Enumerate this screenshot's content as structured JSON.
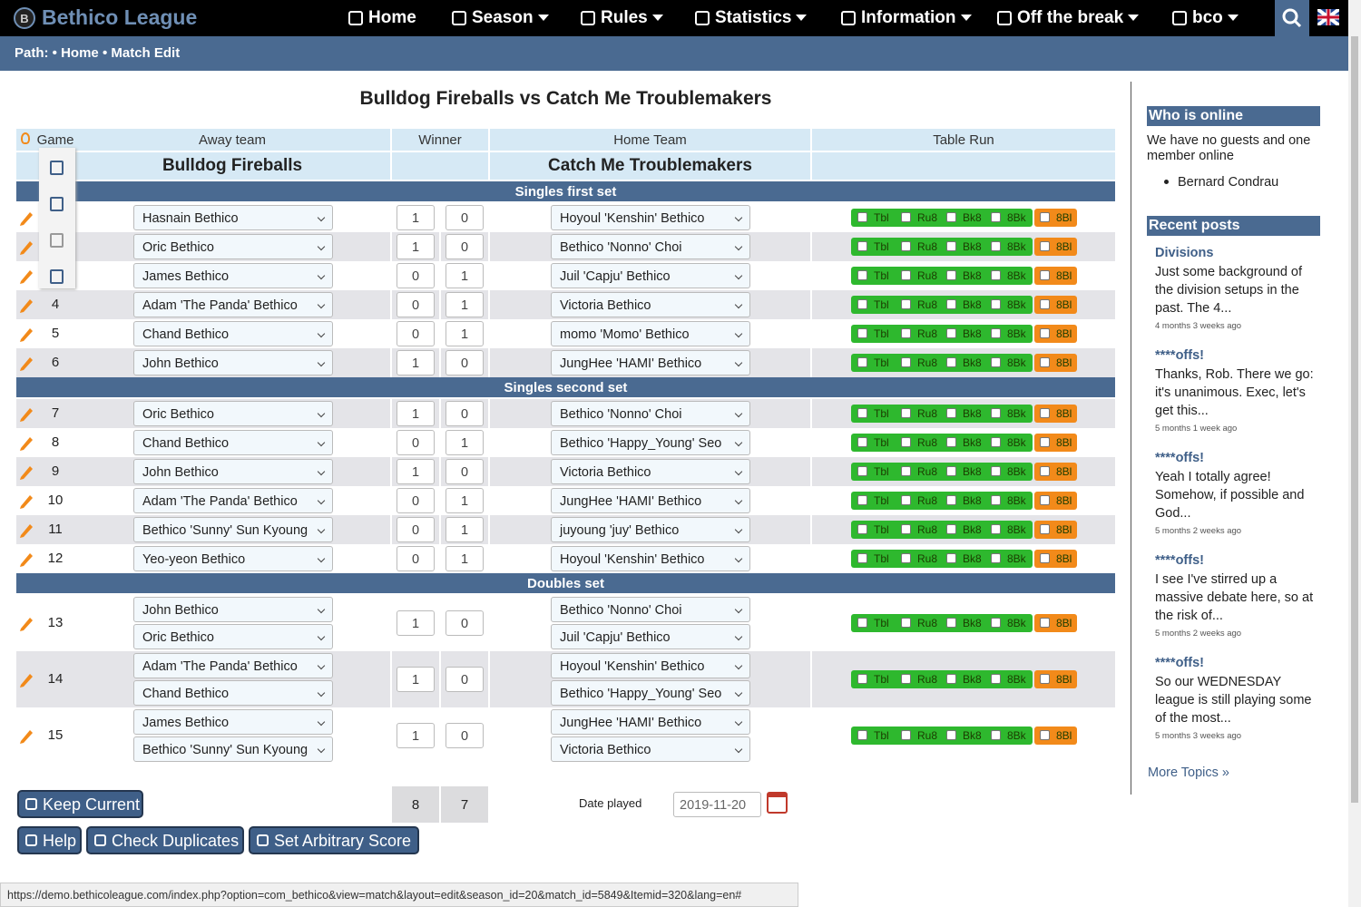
{
  "nav": {
    "brand": "Bethico League",
    "items": [
      "Home",
      "Season",
      "Rules",
      "Statistics",
      "Information",
      "Off the break",
      "bco"
    ]
  },
  "breadcrumb": {
    "label": "Path:",
    "items": [
      "Home",
      "Match Edit"
    ]
  },
  "title": "Bulldog Fireballs vs Catch Me Troublemakers",
  "table": {
    "headers": [
      "Game",
      "Away team",
      "Winner",
      "Home Team",
      "Table Run"
    ],
    "away_team": "Bulldog Fireballs",
    "home_team": "Catch Me Troublemakers",
    "table_run_labels": [
      "Tbl",
      "Ru8",
      "Bk8",
      "8Bk",
      "8Bl"
    ],
    "sections": [
      {
        "title": "Singles first set",
        "games": [
          {
            "game": null,
            "away": [
              "Hasnain Bethico"
            ],
            "score": [
              1,
              0
            ],
            "home": [
              "Hoyoul 'Kenshin' Bethico"
            ]
          },
          {
            "game": null,
            "away": [
              "Oric Bethico"
            ],
            "score": [
              1,
              0
            ],
            "home": [
              "Bethico 'Nonno' Choi"
            ]
          },
          {
            "game": null,
            "away": [
              "James Bethico"
            ],
            "score": [
              0,
              1
            ],
            "home": [
              "Juil 'Capju' Bethico"
            ]
          },
          {
            "game": 4,
            "away": [
              "Adam 'The Panda' Bethico"
            ],
            "score": [
              0,
              1
            ],
            "home": [
              "Victoria Bethico"
            ]
          },
          {
            "game": 5,
            "away": [
              "Chand Bethico"
            ],
            "score": [
              0,
              1
            ],
            "home": [
              "momo 'Momo' Bethico"
            ]
          },
          {
            "game": 6,
            "away": [
              "John Bethico"
            ],
            "score": [
              1,
              0
            ],
            "home": [
              "JungHee 'HAMI' Bethico"
            ]
          }
        ]
      },
      {
        "title": "Singles second set",
        "games": [
          {
            "game": 7,
            "away": [
              "Oric Bethico"
            ],
            "score": [
              1,
              0
            ],
            "home": [
              "Bethico 'Nonno' Choi"
            ]
          },
          {
            "game": 8,
            "away": [
              "Chand Bethico"
            ],
            "score": [
              0,
              1
            ],
            "home": [
              "Bethico 'Happy_Young' Seo"
            ]
          },
          {
            "game": 9,
            "away": [
              "John Bethico"
            ],
            "score": [
              1,
              0
            ],
            "home": [
              "Victoria Bethico"
            ]
          },
          {
            "game": 10,
            "away": [
              "Adam 'The Panda' Bethico"
            ],
            "score": [
              0,
              1
            ],
            "home": [
              "JungHee 'HAMI' Bethico"
            ]
          },
          {
            "game": 11,
            "away": [
              "Bethico 'Sunny' Sun Kyoung"
            ],
            "score": [
              0,
              1
            ],
            "home": [
              "juyoung 'juy' Bethico"
            ]
          },
          {
            "game": 12,
            "away": [
              "Yeo-yeon Bethico"
            ],
            "score": [
              0,
              1
            ],
            "home": [
              "Hoyoul 'Kenshin' Bethico"
            ]
          }
        ]
      },
      {
        "title": "Doubles set",
        "games": [
          {
            "game": 13,
            "away": [
              "John Bethico",
              "Oric Bethico"
            ],
            "score": [
              1,
              0
            ],
            "home": [
              "Bethico 'Nonno' Choi",
              "Juil 'Capju' Bethico"
            ]
          },
          {
            "game": 14,
            "away": [
              "Adam 'The Panda' Bethico",
              "Chand Bethico"
            ],
            "score": [
              1,
              0
            ],
            "home": [
              "Hoyoul 'Kenshin' Bethico",
              "Bethico 'Happy_Young' Seo"
            ]
          },
          {
            "game": 15,
            "away": [
              "James Bethico",
              "Bethico 'Sunny' Sun Kyoung"
            ],
            "score": [
              1,
              0
            ],
            "home": [
              "JungHee 'HAMI' Bethico",
              "Victoria Bethico"
            ]
          }
        ]
      }
    ],
    "totals": [
      8,
      7
    ]
  },
  "date": {
    "label": "Date played",
    "value": "2019-11-20"
  },
  "buttons": [
    "Keep Current",
    "Help",
    "Check Duplicates",
    "Set Arbitrary Score"
  ],
  "sidebar": {
    "online": {
      "title": "Who is online",
      "text": "We have no guests and one member online",
      "members": [
        "Bernard Condrau"
      ]
    },
    "posts": {
      "title": "Recent posts",
      "items": [
        {
          "title": "Divisions",
          "text": "Just some background of the division setups in the past. The 4...",
          "time": "4 months 3 weeks ago"
        },
        {
          "title": "****offs!",
          "text": "Thanks, Rob. There we go: it's unanimous. Exec, let's get this...",
          "time": "5 months 1 week ago"
        },
        {
          "title": "****offs!",
          "text": "Yeah I totally agree! Somehow, if possible and God...",
          "time": "5 months 2 weeks ago"
        },
        {
          "title": "****offs!",
          "text": "I see I've stirred up a massive debate here, so at the risk of...",
          "time": "5 months 2 weeks ago"
        },
        {
          "title": "****offs!",
          "text": "So our WEDNESDAY league is still playing some of the most...",
          "time": "5 months 3 weeks ago"
        }
      ],
      "more": "More Topics »"
    }
  },
  "status_url": "https://demo.bethicoleague.com/index.php?option=com_bethico&view=match&layout=edit&season_id=20&match_id=5849&Itemid=320&lang=en#"
}
